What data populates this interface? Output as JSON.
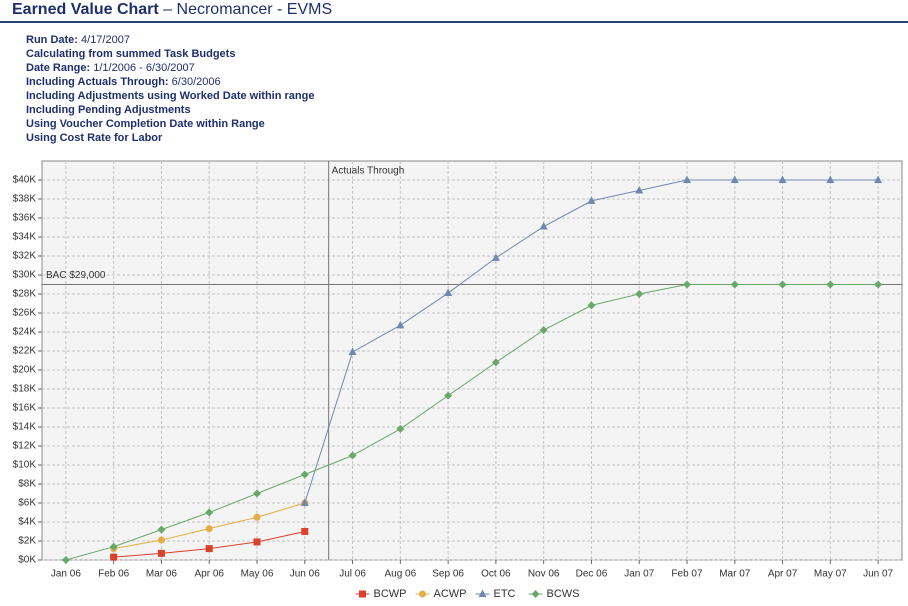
{
  "header": {
    "title": "Earned Value Chart",
    "subtitle": "– Necromancer - EVMS"
  },
  "info": [
    {
      "label": "Run Date:",
      "value": "4/17/2007"
    },
    {
      "label": "Calculating from summed Task Budgets"
    },
    {
      "label": "Date Range:",
      "value": "1/1/2006 - 6/30/2007"
    },
    {
      "label": "Including Actuals Through:",
      "value": "6/30/2006"
    },
    {
      "label": "Including Adjustments using Worked Date within range"
    },
    {
      "label": "Including Pending Adjustments"
    },
    {
      "label": "Using Voucher Completion Date within Range"
    },
    {
      "label": "Using Cost Rate for Labor"
    }
  ],
  "chart_data": {
    "type": "line",
    "categories": [
      "Jan 06",
      "Feb 06",
      "Mar 06",
      "Apr 06",
      "May 06",
      "Jun 06",
      "Jul 06",
      "Aug 06",
      "Sep 06",
      "Oct 06",
      "Nov 06",
      "Dec 06",
      "Jan 07",
      "Feb 07",
      "Mar 07",
      "Apr 07",
      "May 07",
      "Jun 07"
    ],
    "series": [
      {
        "name": "BCWP",
        "color": "#d9412b",
        "marker": "square",
        "values": [
          null,
          300,
          700,
          1200,
          1900,
          3000,
          null,
          null,
          null,
          null,
          null,
          null,
          null,
          null,
          null,
          null,
          null,
          null
        ]
      },
      {
        "name": "ACWP",
        "color": "#e6ac45",
        "marker": "circle",
        "values": [
          null,
          1200,
          2100,
          3300,
          4500,
          6000,
          null,
          null,
          null,
          null,
          null,
          null,
          null,
          null,
          null,
          null,
          null,
          null
        ]
      },
      {
        "name": "ETC",
        "color": "#7088b0",
        "marker": "triangle",
        "values": [
          null,
          null,
          null,
          null,
          null,
          6000,
          21900,
          24700,
          28100,
          31800,
          35100,
          37800,
          38900,
          40000,
          40000,
          40000,
          40000,
          40000
        ]
      },
      {
        "name": "BCWS",
        "color": "#6aa86a",
        "marker": "diamond",
        "values": [
          0,
          1400,
          3200,
          5000,
          7000,
          9000,
          11000,
          13800,
          17300,
          20800,
          24200,
          26800,
          28000,
          29000,
          29000,
          29000,
          29000,
          29000
        ]
      }
    ],
    "ylim": [
      0,
      42000
    ],
    "yticks": [
      {
        "value": 0,
        "label": "$0K"
      },
      {
        "value": 2000,
        "label": "$2K"
      },
      {
        "value": 4000,
        "label": "$4K"
      },
      {
        "value": 6000,
        "label": "$6K"
      },
      {
        "value": 8000,
        "label": "$8K"
      },
      {
        "value": 10000,
        "label": "$10K"
      },
      {
        "value": 12000,
        "label": "$12K"
      },
      {
        "value": 14000,
        "label": "$14K"
      },
      {
        "value": 16000,
        "label": "$16K"
      },
      {
        "value": 18000,
        "label": "$18K"
      },
      {
        "value": 20000,
        "label": "$20K"
      },
      {
        "value": 22000,
        "label": "$22K"
      },
      {
        "value": 24000,
        "label": "$24K"
      },
      {
        "value": 26000,
        "label": "$26K"
      },
      {
        "value": 28000,
        "label": "$28K"
      },
      {
        "value": 30000,
        "label": "$30K"
      },
      {
        "value": 32000,
        "label": "$32K"
      },
      {
        "value": 34000,
        "label": "$34K"
      },
      {
        "value": 36000,
        "label": "$36K"
      },
      {
        "value": 38000,
        "label": "$38K"
      },
      {
        "value": 40000,
        "label": "$40K"
      }
    ],
    "grid": true,
    "bac": {
      "value": 29000,
      "label": "BAC $29,000"
    },
    "actuals_through": {
      "label": "Actuals Through"
    },
    "legend": "bottom"
  }
}
